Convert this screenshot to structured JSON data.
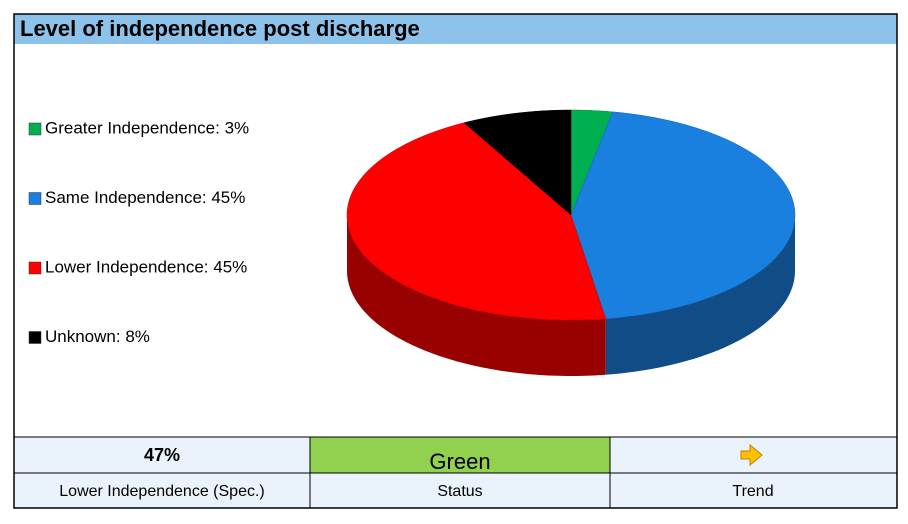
{
  "chart_data": {
    "type": "pie",
    "title": "Level of independence post discharge",
    "categories": [
      "Greater Independence: 3%",
      "Same Independence: 45%",
      "Lower Independence: 45%",
      "Unknown: 8%"
    ],
    "values": [
      3,
      45,
      45,
      8
    ],
    "colors": [
      "#00b050",
      "#1a80e0",
      "#ff0000",
      "#000000"
    ]
  },
  "footer": {
    "rows": [
      [
        "47%",
        "Green",
        ""
      ],
      [
        "Lower Independence (Spec.)",
        "Status",
        "Trend"
      ]
    ]
  }
}
